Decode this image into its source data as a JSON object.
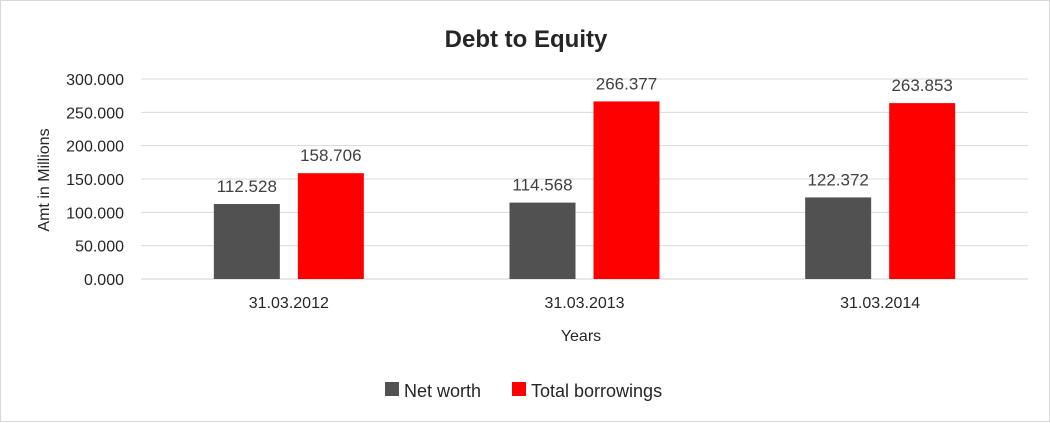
{
  "chart_data": {
    "type": "bar",
    "title": "Debt to Equity",
    "xlabel": "Years",
    "ylabel": "Amt in Millions",
    "categories": [
      "31.03.2012",
      "31.03.2013",
      "31.03.2014"
    ],
    "series": [
      {
        "name": "Net worth",
        "color": "#515151",
        "values": [
          112.528,
          114.568,
          122.372
        ],
        "labels": [
          "112.528",
          "114.568",
          "122.372"
        ]
      },
      {
        "name": "Total borrowings",
        "color": "#ff0000",
        "values": [
          158.706,
          266.377,
          263.853
        ],
        "labels": [
          "158.706",
          "266.377",
          "263.853"
        ]
      }
    ],
    "ylim": [
      0,
      300
    ],
    "yticks": [
      0,
      50,
      100,
      150,
      200,
      250,
      300
    ],
    "ytick_labels": [
      "0.000",
      "50.000",
      "100.000",
      "150.000",
      "200.000",
      "250.000",
      "300.000"
    ],
    "grid": true,
    "legend_position": "bottom"
  }
}
